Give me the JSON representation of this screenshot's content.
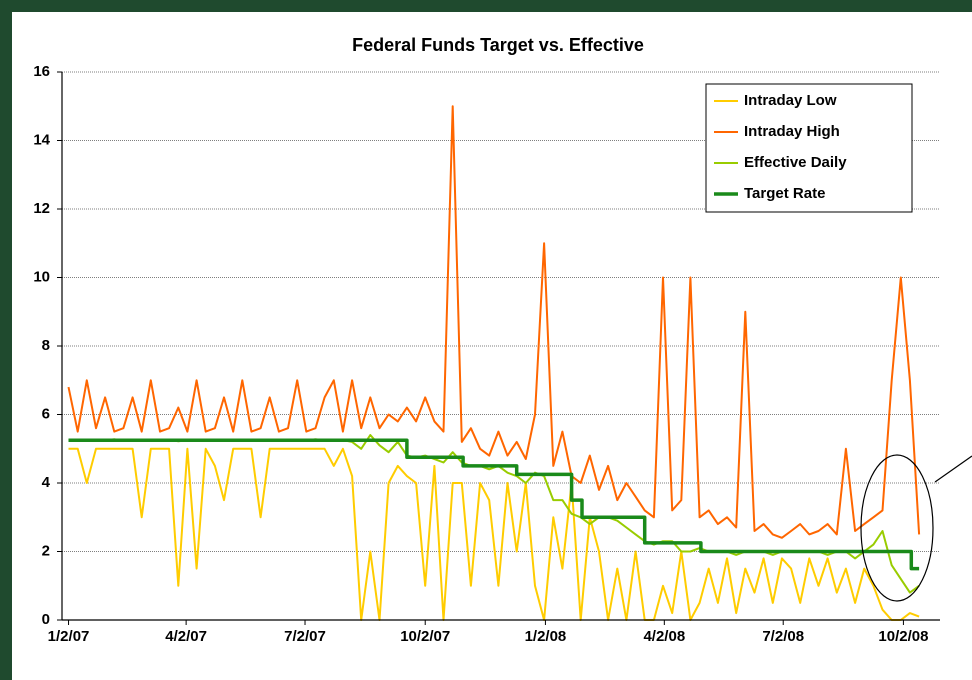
{
  "chart_data": {
    "type": "line",
    "title": "Federal Funds Target vs. Effective",
    "x": [
      "2007-01-02",
      "2007-01-09",
      "2007-01-16",
      "2007-01-23",
      "2007-01-30",
      "2007-02-06",
      "2007-02-13",
      "2007-02-20",
      "2007-02-27",
      "2007-03-06",
      "2007-03-13",
      "2007-03-20",
      "2007-03-27",
      "2007-04-03",
      "2007-04-10",
      "2007-04-17",
      "2007-04-24",
      "2007-05-01",
      "2007-05-08",
      "2007-05-15",
      "2007-05-22",
      "2007-05-29",
      "2007-06-05",
      "2007-06-12",
      "2007-06-19",
      "2007-06-26",
      "2007-07-03",
      "2007-07-10",
      "2007-07-17",
      "2007-07-24",
      "2007-07-31",
      "2007-08-07",
      "2007-08-14",
      "2007-08-21",
      "2007-08-28",
      "2007-09-04",
      "2007-09-11",
      "2007-09-18",
      "2007-09-25",
      "2007-10-02",
      "2007-10-09",
      "2007-10-16",
      "2007-10-23",
      "2007-10-30",
      "2007-11-06",
      "2007-11-13",
      "2007-11-20",
      "2007-11-27",
      "2007-12-04",
      "2007-12-11",
      "2007-12-18",
      "2007-12-25",
      "2008-01-01",
      "2008-01-08",
      "2008-01-15",
      "2008-01-22",
      "2008-01-29",
      "2008-02-05",
      "2008-02-12",
      "2008-02-19",
      "2008-02-26",
      "2008-03-04",
      "2008-03-11",
      "2008-03-18",
      "2008-03-25",
      "2008-04-01",
      "2008-04-08",
      "2008-04-15",
      "2008-04-22",
      "2008-04-29",
      "2008-05-06",
      "2008-05-13",
      "2008-05-20",
      "2008-05-27",
      "2008-06-03",
      "2008-06-10",
      "2008-06-17",
      "2008-06-24",
      "2008-07-01",
      "2008-07-08",
      "2008-07-15",
      "2008-07-22",
      "2008-07-29",
      "2008-08-05",
      "2008-08-12",
      "2008-08-19",
      "2008-08-26",
      "2008-09-02",
      "2008-09-09",
      "2008-09-16",
      "2008-09-23",
      "2008-09-30",
      "2008-10-07",
      "2008-10-14"
    ],
    "series": [
      {
        "name": "Intraday Low",
        "color": "#ffcc00",
        "width": 2,
        "values": [
          5,
          5,
          4,
          5,
          5,
          5,
          5,
          5,
          3,
          5,
          5,
          5,
          1,
          5,
          1.5,
          5,
          4.5,
          3.5,
          5,
          5,
          5,
          3,
          5,
          5,
          5,
          5,
          5,
          5,
          5,
          4.5,
          5,
          4.2,
          0,
          2,
          0,
          4,
          4.5,
          4.2,
          4,
          1,
          4.5,
          0,
          4,
          4,
          1,
          4,
          3.5,
          1,
          4,
          2,
          4,
          1,
          0,
          3,
          1.5,
          4,
          0,
          3,
          2,
          0,
          1.5,
          0,
          2,
          0,
          0,
          1,
          0.2,
          2,
          0,
          0.5,
          1.5,
          0.5,
          1.8,
          0.2,
          1.5,
          0.8,
          1.8,
          0.5,
          1.8,
          1.5,
          0.5,
          1.8,
          1,
          1.8,
          0.8,
          1.5,
          0.5,
          1.5,
          1,
          0.3,
          0,
          0,
          0.2,
          0.1
        ]
      },
      {
        "name": "Intraday High",
        "color": "#ff6600",
        "width": 2,
        "values": [
          6.8,
          5.5,
          7,
          5.6,
          6.5,
          5.5,
          5.6,
          6.5,
          5.5,
          7,
          5.5,
          5.6,
          6.2,
          5.5,
          7,
          5.5,
          5.6,
          6.5,
          5.5,
          7,
          5.5,
          5.6,
          6.5,
          5.5,
          5.6,
          7,
          5.5,
          5.6,
          6.5,
          7,
          5.5,
          7,
          5.6,
          6.5,
          5.6,
          6,
          5.8,
          6.2,
          5.8,
          6.5,
          5.8,
          5.5,
          15,
          5.2,
          5.6,
          5,
          4.8,
          5.5,
          4.8,
          5.2,
          4.7,
          6,
          11,
          4.5,
          5.5,
          4.2,
          4,
          4.8,
          3.8,
          4.5,
          3.5,
          4,
          3.6,
          3.2,
          3,
          10,
          3.2,
          3.5,
          10,
          3,
          3.2,
          2.8,
          3,
          2.7,
          9,
          2.6,
          2.8,
          2.5,
          2.4,
          2.6,
          2.8,
          2.5,
          2.6,
          2.8,
          2.5,
          5,
          2.6,
          2.8,
          3,
          3.2,
          7,
          10,
          7,
          2.5
        ]
      },
      {
        "name": "Effective Daily",
        "color": "#99cc00",
        "width": 2,
        "values": [
          5.25,
          5.27,
          5.24,
          5.26,
          5.25,
          5.28,
          5.23,
          5.25,
          5.26,
          5.25,
          5.25,
          5.26,
          5.22,
          5.25,
          5.27,
          5.25,
          5.24,
          5.26,
          5.25,
          5.25,
          5.26,
          5.25,
          5.27,
          5.25,
          5.24,
          5.26,
          5.25,
          5.28,
          5.25,
          5.26,
          5.25,
          5.2,
          5,
          5.4,
          5.1,
          4.9,
          5.2,
          4.8,
          4.75,
          4.8,
          4.7,
          4.6,
          4.9,
          4.6,
          4.5,
          4.5,
          4.4,
          4.5,
          4.3,
          4.2,
          4,
          4.3,
          4.2,
          3.5,
          3.5,
          3.1,
          3,
          2.8,
          3,
          3,
          2.9,
          2.7,
          2.5,
          2.3,
          2.2,
          2.3,
          2.3,
          2,
          2,
          2.1,
          2,
          2,
          2,
          1.9,
          2,
          2,
          2,
          1.9,
          2,
          2,
          2,
          2,
          2,
          1.9,
          2,
          2,
          1.8,
          2,
          2.2,
          2.6,
          1.6,
          1.2,
          0.8,
          1
        ]
      },
      {
        "name": "Target Rate",
        "color": "#1a8a1a",
        "width": 3.5,
        "x": [
          "2007-01-02",
          "2007-09-18",
          "2007-09-18",
          "2007-10-31",
          "2007-10-31",
          "2007-12-11",
          "2007-12-11",
          "2008-01-22",
          "2008-01-22",
          "2008-01-30",
          "2008-01-30",
          "2008-03-18",
          "2008-03-18",
          "2008-04-30",
          "2008-04-30",
          "2008-10-08",
          "2008-10-08",
          "2008-10-14"
        ],
        "values": [
          5.25,
          5.25,
          4.75,
          4.75,
          4.5,
          4.5,
          4.25,
          4.25,
          3.5,
          3.5,
          3,
          3,
          2.25,
          2.25,
          2,
          2,
          1.5,
          1.5
        ]
      }
    ],
    "xlim": [
      "2006-12-28",
      "2008-10-30"
    ],
    "xticks": [
      {
        "value": "2007-01-02",
        "label": "1/2/07"
      },
      {
        "value": "2007-04-02",
        "label": "4/2/07"
      },
      {
        "value": "2007-07-02",
        "label": "7/2/07"
      },
      {
        "value": "2007-10-02",
        "label": "10/2/07"
      },
      {
        "value": "2008-01-02",
        "label": "1/2/08"
      },
      {
        "value": "2008-04-02",
        "label": "4/2/08"
      },
      {
        "value": "2008-07-02",
        "label": "7/2/08"
      },
      {
        "value": "2008-10-02",
        "label": "10/2/08"
      }
    ],
    "ylim": [
      0,
      16
    ],
    "yticks": [
      0,
      2,
      4,
      6,
      8,
      10,
      12,
      14,
      16
    ],
    "grid": true,
    "legend": "top-right"
  }
}
